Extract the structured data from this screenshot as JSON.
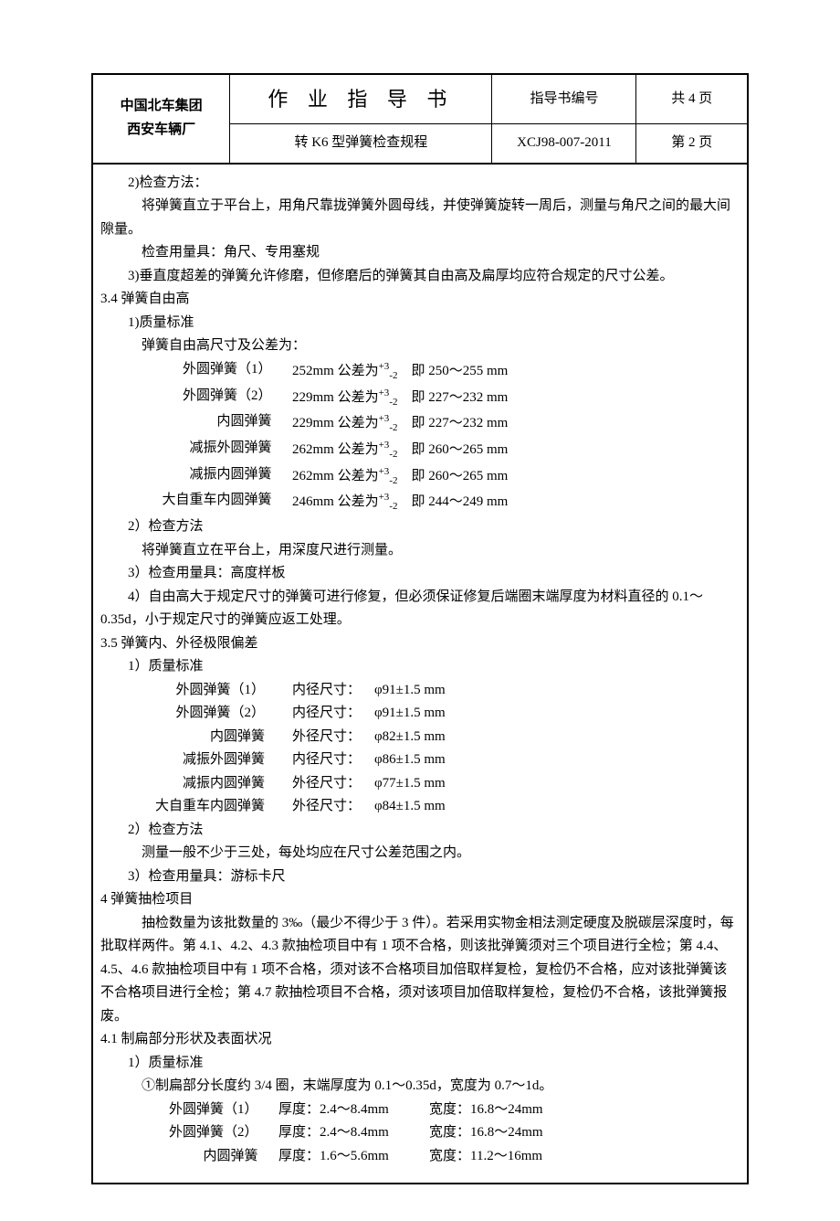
{
  "header": {
    "org_line1": "中国北车集团",
    "org_line2": "西安车辆厂",
    "title": "作 业 指 导 书",
    "subtitle": "转 K6 型弹簧检查规程",
    "docnum_label": "指导书编号",
    "docnum": "XCJ98-007-2011",
    "pages_total": "共 4 页",
    "pages_current": "第 2 页"
  },
  "s32": {
    "p1_label": "2)检查方法：",
    "p1_body": "将弹簧直立于平台上，用角尺靠拢弹簧外圆母线，并使弹簧旋转一周后，测量与角尺之间的最大间隙量。",
    "p2": "检查用量具：角尺、专用塞规",
    "p3": "3)垂直度超差的弹簧允许修磨，但修磨后的弹簧其自由高及扁厚均应符合规定的尺寸公差。"
  },
  "s34": {
    "heading": "3.4 弹簧自由高",
    "q_label": "1)质量标准",
    "q_intro": "弹簧自由高尺寸及公差为：",
    "rows": [
      {
        "name": "外圆弹簧（1）",
        "base": "252mm 公差为",
        "tol_up": "+3",
        "tol_dn": "-2",
        "range": "即 250～255 mm"
      },
      {
        "name": "外圆弹簧（2）",
        "base": "229mm 公差为",
        "tol_up": "+3",
        "tol_dn": "-2",
        "range": "即 227～232 mm"
      },
      {
        "name": "内圆弹簧",
        "base": "229mm 公差为",
        "tol_up": "+3",
        "tol_dn": "-2",
        "range": "即 227～232 mm"
      },
      {
        "name": "减振外圆弹簧",
        "base": "262mm 公差为",
        "tol_up": "+3",
        "tol_dn": "-2",
        "range": "即 260～265 mm"
      },
      {
        "name": "减振内圆弹簧",
        "base": "262mm 公差为",
        "tol_up": "+3",
        "tol_dn": "-2",
        "range": "即 260～265 mm"
      },
      {
        "name": "大自重车内圆弹簧",
        "base": "246mm 公差为",
        "tol_up": "+3",
        "tol_dn": "-2",
        "range": "即 244～249 mm"
      }
    ],
    "m2_label": "2）检查方法",
    "m2_body": "将弹簧直立在平台上，用深度尺进行测量。",
    "m3": "3）检查用量具：高度样板",
    "m4": "4）自由高大于规定尺寸的弹簧可进行修复，但必须保证修复后端圈末端厚度为材料直径的 0.1～0.35d，小于规定尺寸的弹簧应返工处理。"
  },
  "s35": {
    "heading": "3.5 弹簧内、外径极限偏差",
    "q_label": "1）质量标准",
    "rows": [
      {
        "name": "外圆弹簧（1）",
        "label": "内径尺寸：",
        "val": "φ91±1.5 mm"
      },
      {
        "name": "外圆弹簧（2）",
        "label": "内径尺寸：",
        "val": "φ91±1.5 mm"
      },
      {
        "name": "内圆弹簧",
        "label": "外径尺寸：",
        "val": "φ82±1.5 mm"
      },
      {
        "name": "减振外圆弹簧",
        "label": "内径尺寸：",
        "val": "φ86±1.5 mm"
      },
      {
        "name": "减振内圆弹簧",
        "label": "外径尺寸：",
        "val": "φ77±1.5 mm"
      },
      {
        "name": "大自重车内圆弹簧",
        "label": "外径尺寸：",
        "val": "φ84±1.5 mm"
      }
    ],
    "m2_label": "2）检查方法",
    "m2_body": "测量一般不少于三处，每处均应在尺寸公差范围之内。",
    "m3": "3）检查用量具：游标卡尺"
  },
  "s4": {
    "heading": "4 弹簧抽检项目",
    "body": "抽检数量为该批数量的 3‰（最少不得少于 3 件）。若采用实物金相法测定硬度及脱碳层深度时，每批取样两件。第 4.1、4.2、4.3 款抽检项目中有 1 项不合格，则该批弹簧须对三个项目进行全检；第 4.4、4.5、4.6 款抽检项目中有 1 项不合格，须对该不合格项目加倍取样复检，复检仍不合格，应对该批弹簧该不合格项目进行全检；第 4.7 款抽检项目不合格，须对该项目加倍取样复检，复检仍不合格，该批弹簧报废。"
  },
  "s41": {
    "heading": "4.1 制扁部分形状及表面状况",
    "q_label": "1）质量标准",
    "q_body": "①制扁部分长度约 3/4 圈，末端厚度为 0.1～0.35d，宽度为 0.7～1d。",
    "rows": [
      {
        "name": "外圆弹簧（1）",
        "thick": "厚度：2.4～8.4mm",
        "width": "宽度：16.8～24mm"
      },
      {
        "name": "外圆弹簧（2）",
        "thick": "厚度：2.4～8.4mm",
        "width": "宽度：16.8～24mm"
      },
      {
        "name": "内圆弹簧",
        "thick": "厚度：1.6～5.6mm",
        "width": "宽度：11.2～16mm"
      }
    ]
  }
}
